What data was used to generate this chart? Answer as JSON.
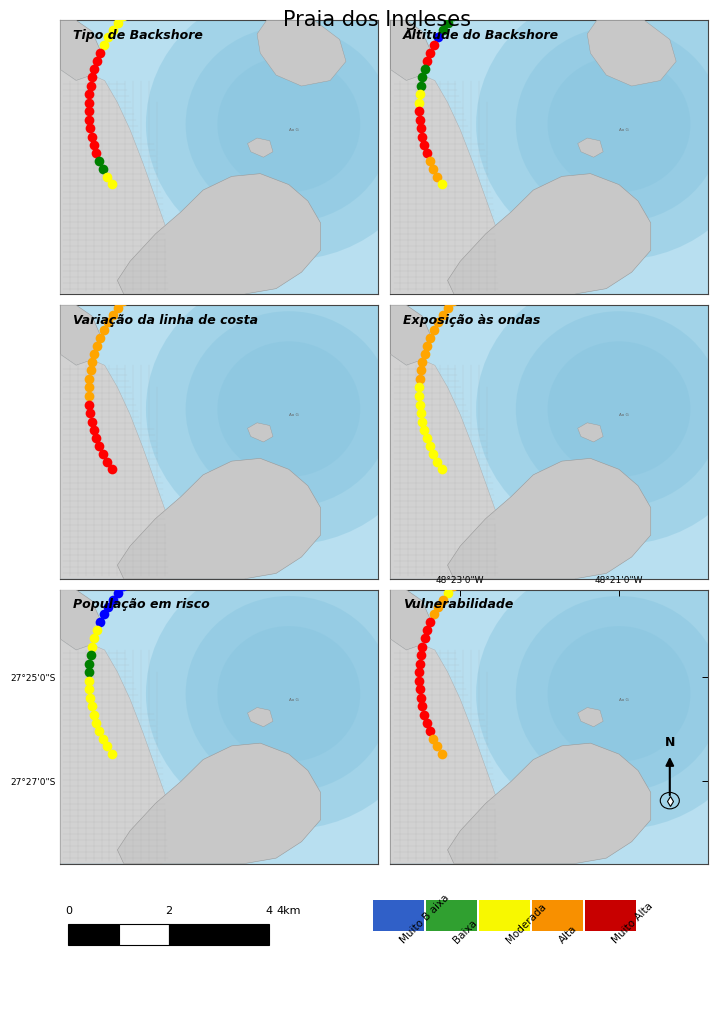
{
  "title": "Praia dos Ingleses",
  "title_fontsize": 15,
  "panel_titles": [
    "Tipo de Backshore",
    "Altitude do Backshore",
    "Variação da linha de costa",
    "Exposição às ondas",
    "População em risco",
    "Vulnerabilidade"
  ],
  "panel_title_italic": true,
  "panel_title_fontsize": 9,
  "ocean_color_deep": "#7bbfdb",
  "ocean_color_mid": "#9ecfe6",
  "ocean_color_light": "#b8dff0",
  "ocean_color_shore": "#cce8f4",
  "land_color": "#c8c8c8",
  "urban_color": "#d2d2d2",
  "bg_color": "#ffffff",
  "legend_colors": [
    "#3060c8",
    "#30a030",
    "#f8f800",
    "#f89000",
    "#c80000"
  ],
  "legend_labels": [
    "Muito B aixa",
    "Baixa",
    "Moderada",
    "Alta",
    "Muito Alta"
  ],
  "coord_labels": {
    "lon1": "48°23'0\"W",
    "lon2": "48°21'0\"W",
    "lat1": "27°25'0\"S",
    "lat2": "27°27'0\"S"
  },
  "panel_colors": {
    "panel0_dots": [
      "yellow",
      "yellow",
      "yellow",
      "yellow",
      "yellow",
      "yellow",
      "yellow",
      "yellow",
      "red",
      "red",
      "red",
      "red",
      "red",
      "red",
      "red",
      "red",
      "red",
      "red",
      "red",
      "red",
      "red",
      "green",
      "green",
      "yellow",
      "yellow"
    ],
    "panel1_dots": [
      "red",
      "blue",
      "blue",
      "green",
      "green",
      "green",
      "blue",
      "red",
      "red",
      "red",
      "green",
      "green",
      "green",
      "yellow",
      "yellow",
      "red",
      "red",
      "red",
      "red",
      "red",
      "red",
      "orange",
      "orange",
      "orange",
      "yellow"
    ],
    "panel2_dots": [
      "red",
      "red",
      "yellow",
      "orange",
      "orange",
      "orange",
      "orange",
      "orange",
      "orange",
      "orange",
      "orange",
      "orange",
      "orange",
      "orange",
      "orange",
      "orange",
      "red",
      "red",
      "red",
      "red",
      "red",
      "red",
      "red",
      "red",
      "red"
    ],
    "panel3_dots": [
      "orange",
      "orange",
      "orange",
      "orange",
      "orange",
      "orange",
      "orange",
      "orange",
      "orange",
      "orange",
      "orange",
      "orange",
      "orange",
      "orange",
      "yellow",
      "yellow",
      "yellow",
      "yellow",
      "yellow",
      "yellow",
      "yellow",
      "yellow",
      "yellow",
      "yellow",
      "yellow"
    ],
    "panel4_dots": [
      "blue",
      "blue",
      "blue",
      "blue",
      "blue",
      "blue",
      "blue",
      "blue",
      "blue",
      "yellow",
      "yellow",
      "yellow",
      "green",
      "green",
      "green",
      "yellow",
      "yellow",
      "yellow",
      "yellow",
      "yellow",
      "yellow",
      "yellow",
      "yellow",
      "yellow",
      "yellow"
    ],
    "panel5_dots": [
      "orange",
      "orange",
      "orange",
      "orange",
      "yellow",
      "orange",
      "orange",
      "orange",
      "red",
      "red",
      "red",
      "red",
      "red",
      "red",
      "red",
      "red",
      "red",
      "red",
      "red",
      "red",
      "red",
      "red",
      "orange",
      "orange",
      "orange"
    ]
  },
  "dot_size": 7.0
}
